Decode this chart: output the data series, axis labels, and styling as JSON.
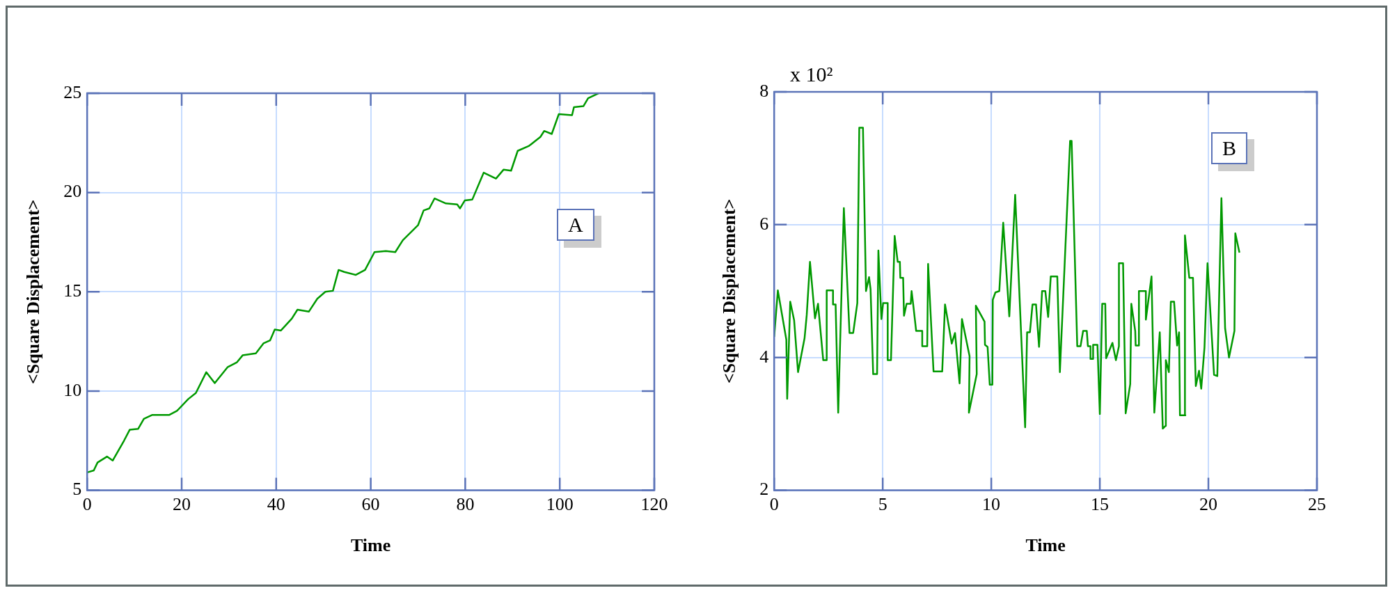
{
  "chart_data": [
    {
      "type": "line",
      "xlabel": "Time",
      "ylabel": "<Square Displacement>",
      "xlim": [
        0,
        120
      ],
      "xticks": [
        0,
        20,
        40,
        60,
        80,
        100,
        120
      ],
      "ylim": [
        5,
        25
      ],
      "yticks": [
        5,
        10,
        15,
        20,
        25
      ],
      "grid": true,
      "marker": "none",
      "annotations": [
        "A"
      ],
      "series": [
        {
          "color": "#009900",
          "x": [
            0,
            1.4,
            2.2,
            4.2,
            5.4,
            7.8,
            9.0,
            10.8,
            12.0,
            13.8,
            17.4,
            19.0,
            21.4,
            23.0,
            25.2,
            27.0,
            29.7,
            31.7,
            32.9,
            35.7,
            37.3,
            38.7,
            39.7,
            41.0,
            43.3,
            44.5,
            46.9,
            48.7,
            50.4,
            52.0,
            53.2,
            54.4,
            56.8,
            58.8,
            60.8,
            63.2,
            65.2,
            66.8,
            70.0,
            71.2,
            72.4,
            73.5,
            75.9,
            78.3,
            78.9,
            79.9,
            81.5,
            83.9,
            86.5,
            88.1,
            89.7,
            91.1,
            93.5,
            95.9,
            96.7,
            98.3,
            99.8,
            102.6,
            103.0,
            105.0,
            106.0,
            108.2
          ],
          "values": [
            5.9,
            6.0,
            6.4,
            6.7,
            6.5,
            7.5,
            8.05,
            8.1,
            8.6,
            8.8,
            8.8,
            9.0,
            9.6,
            9.9,
            10.95,
            10.4,
            11.2,
            11.45,
            11.8,
            11.9,
            12.4,
            12.55,
            13.1,
            13.05,
            13.65,
            14.1,
            14.0,
            14.65,
            15.0,
            15.05,
            16.1,
            16.0,
            15.85,
            16.1,
            17.0,
            17.05,
            17.0,
            17.6,
            18.35,
            19.1,
            19.2,
            19.7,
            19.45,
            19.4,
            19.2,
            19.6,
            19.65,
            21.0,
            20.7,
            21.15,
            21.1,
            22.1,
            22.35,
            22.8,
            23.1,
            22.95,
            23.95,
            23.9,
            24.3,
            24.35,
            24.75,
            25.0
          ]
        }
      ]
    },
    {
      "type": "line",
      "xlabel": "Time",
      "ylabel": "<Square Displacement>",
      "xlim": [
        0,
        25
      ],
      "xticks": [
        0,
        5,
        10,
        15,
        20,
        25
      ],
      "ylim": [
        2,
        8
      ],
      "yticks": [
        2,
        4,
        6,
        8
      ],
      "grid": true,
      "marker": "none",
      "annotations": [
        "x 10²",
        "B"
      ],
      "series": [
        {
          "color": "#009900",
          "x": [
            0,
            0.17,
            0.56,
            0.6,
            0.74,
            0.92,
            1.1,
            1.4,
            1.5,
            1.65,
            1.88,
            2.02,
            2.26,
            2.42,
            2.42,
            2.71,
            2.71,
            2.83,
            2.95,
            3.21,
            3.47,
            3.64,
            3.83,
            3.92,
            4.09,
            4.23,
            4.37,
            4.44,
            4.56,
            4.74,
            4.8,
            4.94,
            5.02,
            5.23,
            5.23,
            5.38,
            5.55,
            5.69,
            5.79,
            5.81,
            5.94,
            5.98,
            6.1,
            6.29,
            6.33,
            6.4,
            6.54,
            6.82,
            6.82,
            7.05,
            7.09,
            7.34,
            7.74,
            7.87,
            8.18,
            8.33,
            8.54,
            8.65,
            9.0,
            8.97,
            9.33,
            9.29,
            9.69,
            9.71,
            9.83,
            9.93,
            10.05,
            10.07,
            10.19,
            10.37,
            10.55,
            10.83,
            11.1,
            11.56,
            11.65,
            11.78,
            11.9,
            12.06,
            12.2,
            12.34,
            12.49,
            12.62,
            12.74,
            12.82,
            13.04,
            13.16,
            13.63,
            13.7,
            13.96,
            14.11,
            14.23,
            14.4,
            14.45,
            14.57,
            14.57,
            14.69,
            14.69,
            14.89,
            15.0,
            15.11,
            15.25,
            15.29,
            15.58,
            15.74,
            15.88,
            15.88,
            16.07,
            16.19,
            16.4,
            16.45,
            16.63,
            16.65,
            16.8,
            16.8,
            17.12,
            17.12,
            17.38,
            17.51,
            17.76,
            17.9,
            18.02,
            18.04,
            18.18,
            18.27,
            18.42,
            18.56,
            18.65,
            18.69,
            18.94,
            18.92,
            19.12,
            19.29,
            19.42,
            19.57,
            19.67,
            19.82,
            19.96,
            20.26,
            20.41,
            20.6,
            20.77,
            20.95,
            21.2,
            21.24,
            21.43
          ],
          "values": [
            4.31,
            5.01,
            4.27,
            3.38,
            4.84,
            4.56,
            3.78,
            4.29,
            4.64,
            5.44,
            4.59,
            4.81,
            3.96,
            3.96,
            5.01,
            5.01,
            4.8,
            4.8,
            3.17,
            6.25,
            4.37,
            4.37,
            4.82,
            7.46,
            7.46,
            5.0,
            5.21,
            5.03,
            3.75,
            3.75,
            5.61,
            4.58,
            4.82,
            4.82,
            3.96,
            3.96,
            5.83,
            5.44,
            5.44,
            5.2,
            5.2,
            4.63,
            4.81,
            4.81,
            5.0,
            4.81,
            4.4,
            4.4,
            4.17,
            4.17,
            5.41,
            3.79,
            3.79,
            4.8,
            4.21,
            4.37,
            3.61,
            4.58,
            4.02,
            3.17,
            3.75,
            4.78,
            4.54,
            4.19,
            4.16,
            3.59,
            3.59,
            4.87,
            4.98,
            5.0,
            6.03,
            4.62,
            6.45,
            2.95,
            4.38,
            4.38,
            4.8,
            4.8,
            4.16,
            5.0,
            5.0,
            4.61,
            5.22,
            5.22,
            5.22,
            3.78,
            7.26,
            7.26,
            4.17,
            4.17,
            4.4,
            4.4,
            4.17,
            4.17,
            3.98,
            3.98,
            4.19,
            4.19,
            3.15,
            4.81,
            4.81,
            3.99,
            4.22,
            3.96,
            4.17,
            5.42,
            5.42,
            3.16,
            3.6,
            4.81,
            4.4,
            4.18,
            4.18,
            5.0,
            5.0,
            4.57,
            5.22,
            3.17,
            4.38,
            2.93,
            2.97,
            3.96,
            3.78,
            4.84,
            4.84,
            4.18,
            4.38,
            3.13,
            3.13,
            5.84,
            5.2,
            5.2,
            3.57,
            3.8,
            3.53,
            4.15,
            5.42,
            3.74,
            3.72,
            6.4,
            4.44,
            4.0,
            4.4,
            5.87,
            5.58
          ]
        }
      ]
    }
  ]
}
